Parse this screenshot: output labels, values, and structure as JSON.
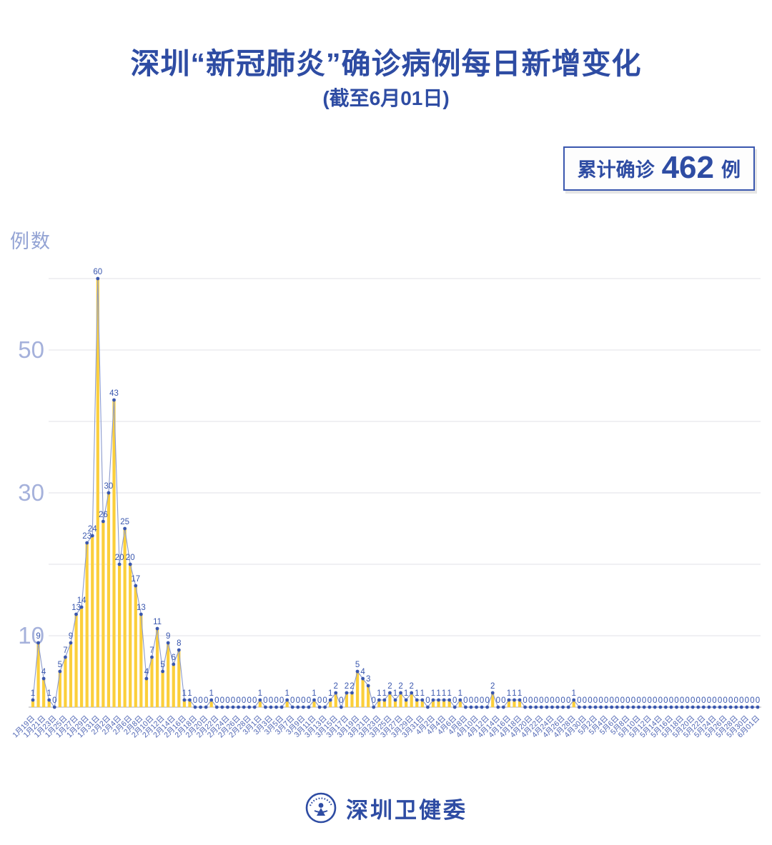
{
  "title": "深圳“新冠肺炎”确诊病例每日新增变化",
  "subtitle": "(截至6月01日)",
  "badge": {
    "prefix": "累计确诊",
    "value": "462",
    "suffix": "例"
  },
  "footer": {
    "name": "深圳卫健委",
    "logo": "shenzhen-health-commission-emblem"
  },
  "chart_data": {
    "type": "bar",
    "title": "深圳“新冠肺炎”确诊病例每日新增变化",
    "xlabel": "",
    "ylabel": "例数",
    "ylim": [
      0,
      62
    ],
    "yticks_labeled": [
      10,
      30,
      50
    ],
    "gridlines": [
      10,
      20,
      30,
      40,
      50,
      60
    ],
    "grid": true,
    "legend": "none",
    "xtick_every": 2,
    "x": [
      "1月19日",
      "1月20日",
      "1月21日",
      "1月22日",
      "1月23日",
      "1月24日",
      "1月25日",
      "1月26日",
      "1月27日",
      "1月28日",
      "1月29日",
      "1月30日",
      "1月31日",
      "2月1日",
      "2月2日",
      "2月3日",
      "2月4日",
      "2月5日",
      "2月6日",
      "2月7日",
      "2月8日",
      "2月9日",
      "2月10日",
      "2月11日",
      "2月12日",
      "2月13日",
      "2月14日",
      "2月15日",
      "2月16日",
      "2月17日",
      "2月18日",
      "2月19日",
      "2月20日",
      "2月21日",
      "2月22日",
      "2月23日",
      "2月24日",
      "2月25日",
      "2月26日",
      "2月27日",
      "2月28日",
      "2月29日",
      "3月1日",
      "3月2日",
      "3月3日",
      "3月4日",
      "3月5日",
      "3月6日",
      "3月7日",
      "3月8日",
      "3月9日",
      "3月10日",
      "3月11日",
      "3月12日",
      "3月13日",
      "3月14日",
      "3月15日",
      "3月16日",
      "3月17日",
      "3月18日",
      "3月19日",
      "3月20日",
      "3月21日",
      "3月22日",
      "3月23日",
      "3月24日",
      "3月25日",
      "3月26日",
      "3月27日",
      "3月28日",
      "3月29日",
      "3月30日",
      "3月31日",
      "4月1日",
      "4月2日",
      "4月3日",
      "4月4日",
      "4月5日",
      "4月6日",
      "4月7日",
      "4月8日",
      "4月9日",
      "4月10日",
      "4月11日",
      "4月12日",
      "4月13日",
      "4月14日",
      "4月15日",
      "4月16日",
      "4月17日",
      "4月18日",
      "4月19日",
      "4月20日",
      "4月21日",
      "4月22日",
      "4月23日",
      "4月24日",
      "4月25日",
      "4月26日",
      "4月27日",
      "4月28日",
      "4月29日",
      "4月30日",
      "5月1日",
      "5月2日",
      "5月3日",
      "5月4日",
      "5月5日",
      "5月6日",
      "5月7日",
      "5月8日",
      "5月9日",
      "5月10日",
      "5月11日",
      "5月12日",
      "5月13日",
      "5月14日",
      "5月15日",
      "5月16日",
      "5月17日",
      "5月18日",
      "5月19日",
      "5月20日",
      "5月21日",
      "5月22日",
      "5月23日",
      "5月24日",
      "5月25日",
      "5月26日",
      "5月27日",
      "5月28日",
      "5月29日",
      "5月30日",
      "5月31日",
      "6月01日"
    ],
    "values": [
      1,
      9,
      4,
      1,
      0,
      5,
      7,
      9,
      13,
      14,
      23,
      24,
      60,
      26,
      30,
      43,
      20,
      25,
      20,
      17,
      13,
      4,
      7,
      11,
      5,
      9,
      6,
      8,
      1,
      1,
      0,
      0,
      0,
      1,
      0,
      0,
      0,
      0,
      0,
      0,
      0,
      0,
      1,
      0,
      0,
      0,
      0,
      1,
      0,
      0,
      0,
      0,
      1,
      0,
      0,
      1,
      2,
      0,
      2,
      2,
      5,
      4,
      3,
      0,
      1,
      1,
      2,
      1,
      2,
      1,
      2,
      1,
      1,
      0,
      1,
      1,
      1,
      1,
      0,
      1,
      0,
      0,
      0,
      0,
      0,
      2,
      0,
      0,
      1,
      1,
      1,
      0,
      0,
      0,
      0,
      0,
      0,
      0,
      0,
      0,
      1,
      0,
      0,
      0,
      0,
      0,
      0,
      0,
      0,
      0,
      0,
      0,
      0,
      0,
      0,
      0,
      0,
      0,
      0,
      0,
      0,
      0,
      0,
      0,
      0,
      0,
      0,
      0,
      0,
      0,
      0,
      0,
      0,
      0,
      0
    ],
    "colors": {
      "bar": "#FBCF3B",
      "line": "#8C9BCD",
      "dot": "#3A57AE",
      "value_label": "#3A57AE",
      "y_tick": "#A5B1DB",
      "x_tick": "#5066B4",
      "grid_line": "#ECECEF",
      "axis_line": "#C9C9CE",
      "brand_blue": "#2E4CA3"
    }
  }
}
